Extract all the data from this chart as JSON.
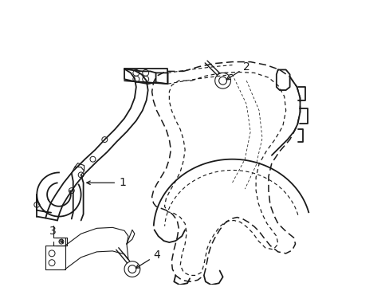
{
  "background_color": "#ffffff",
  "line_color": "#1a1a1a",
  "fig_width": 4.89,
  "fig_height": 3.6,
  "dpi": 100,
  "label_fontsize": 10,
  "lw_main": 1.3,
  "lw_thin": 0.8,
  "lw_dash": 1.1,
  "dash_pattern": [
    6,
    3
  ],
  "dash_pattern2": [
    4,
    3
  ]
}
